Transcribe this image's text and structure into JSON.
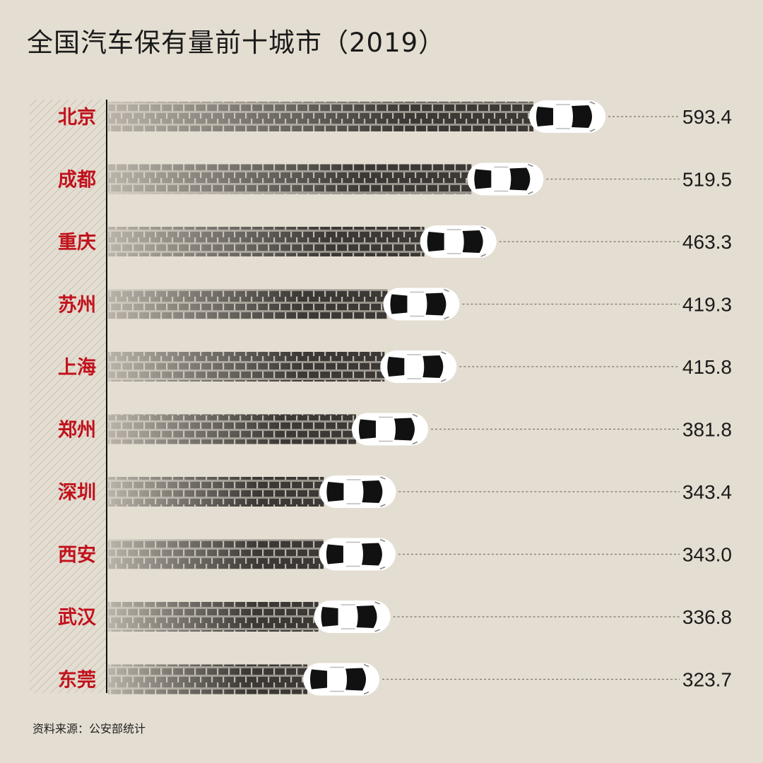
{
  "title": "全国汽车保有量前十城市（2019）",
  "source": "资料来源：公安部统计",
  "colors": {
    "background": "#e4ddd1",
    "bar": "#3b3835",
    "label_red": "#c1121c",
    "text": "#1a1a1a",
    "car_body": "#ffffff",
    "car_glass": "#111111",
    "leader_line": "#7a7670"
  },
  "chart_data": {
    "type": "bar",
    "orientation": "horizontal",
    "categories": [
      "北京",
      "成都",
      "重庆",
      "苏州",
      "上海",
      "郑州",
      "深圳",
      "西安",
      "武汉",
      "东莞"
    ],
    "values": [
      593.4,
      519.5,
      463.3,
      419.3,
      415.8,
      381.8,
      343.4,
      343.0,
      336.8,
      323.7
    ],
    "value_labels": [
      "593.4",
      "519.5",
      "463.3",
      "419.3",
      "415.8",
      "381.8",
      "343.4",
      "343.0",
      "336.8",
      "323.7"
    ],
    "title": "全国汽车保有量前十城市（2019）",
    "xlabel": "",
    "ylabel": "",
    "grid": false,
    "legend": "none",
    "mark_style": "tire-track bar ending in top-view car icon"
  }
}
